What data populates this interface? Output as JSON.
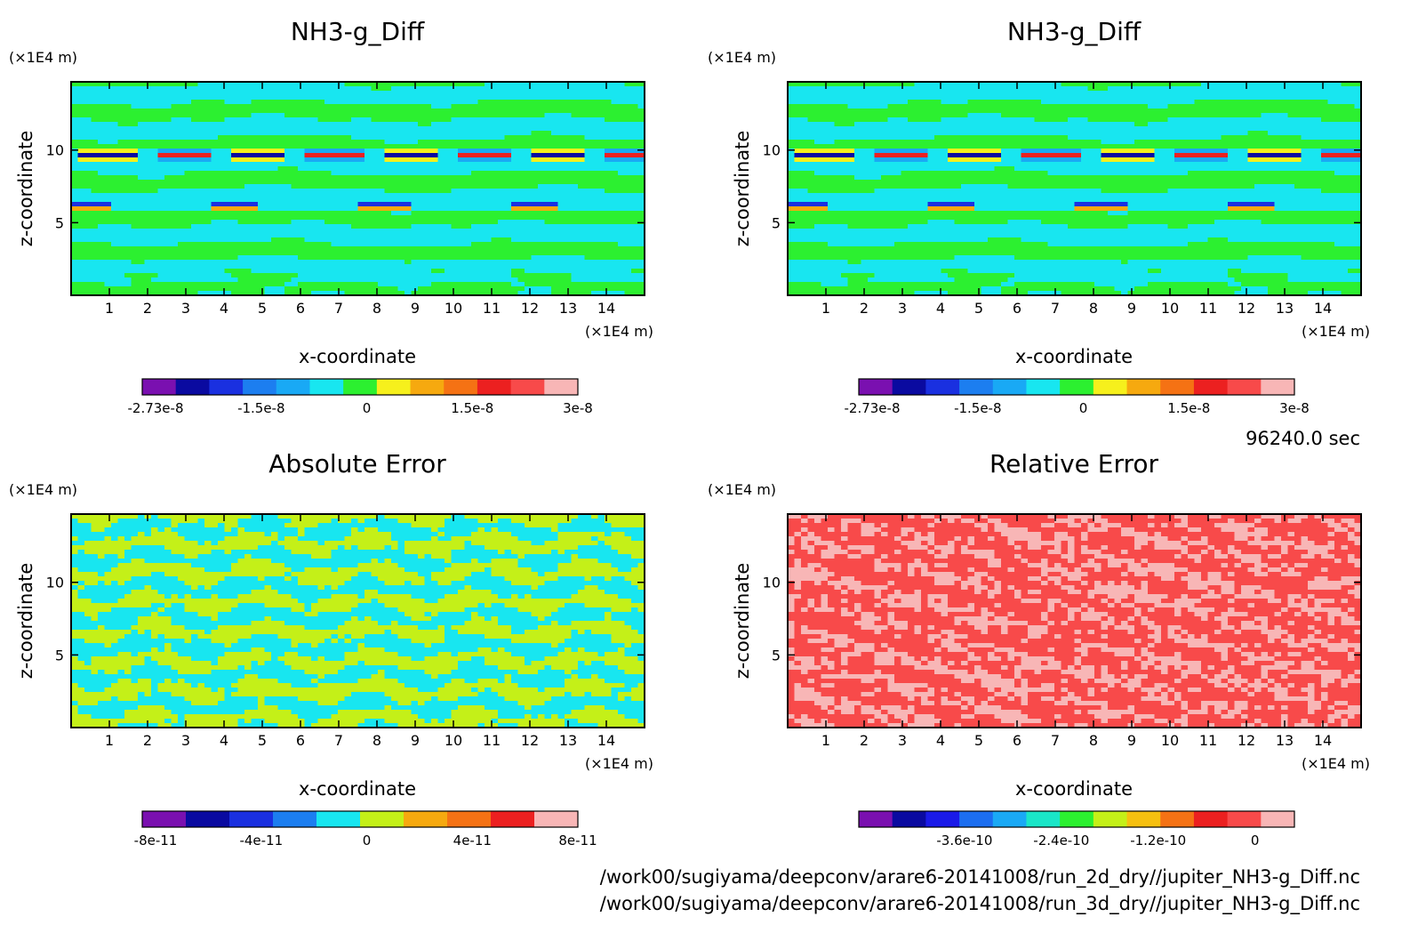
{
  "panels": [
    {
      "title": "NH3-g_Diff",
      "xlabel": "x-coordinate",
      "ylabel": "z-coordinate",
      "x_unit": "(×1E4 m)",
      "y_unit": "(×1E4 m)",
      "x_ticks": [
        "1",
        "2",
        "3",
        "4",
        "5",
        "6",
        "7",
        "8",
        "9",
        "10",
        "11",
        "12",
        "13",
        "14"
      ],
      "y_ticks": [
        "5",
        "10"
      ],
      "colorbar": {
        "colors": [
          "#7a10b0",
          "#0a0aa0",
          "#1a30e0",
          "#1c7ef0",
          "#19a9f5",
          "#18e6f0",
          "#2cf030",
          "#f6f01c",
          "#f6a90f",
          "#f57214",
          "#ec2020",
          "#f84a4a",
          "#f8b6b6"
        ],
        "labels": [
          "-2.73e-8",
          "-1.5e-8",
          "0",
          "1.5e-8",
          "3e-8"
        ]
      }
    },
    {
      "title": "NH3-g_Diff",
      "xlabel": "x-coordinate",
      "ylabel": "z-coordinate",
      "x_unit": "(×1E4 m)",
      "y_unit": "(×1E4 m)",
      "x_ticks": [
        "1",
        "2",
        "3",
        "4",
        "5",
        "6",
        "7",
        "8",
        "9",
        "10",
        "11",
        "12",
        "13",
        "14"
      ],
      "y_ticks": [
        "5",
        "10"
      ],
      "colorbar": {
        "colors": [
          "#7a10b0",
          "#0a0aa0",
          "#1a30e0",
          "#1c7ef0",
          "#19a9f5",
          "#18e6f0",
          "#2cf030",
          "#f6f01c",
          "#f6a90f",
          "#f57214",
          "#ec2020",
          "#f84a4a",
          "#f8b6b6"
        ],
        "labels": [
          "-2.73e-8",
          "-1.5e-8",
          "0",
          "1.5e-8",
          "3e-8"
        ]
      }
    },
    {
      "title": "Absolute Error",
      "xlabel": "x-coordinate",
      "ylabel": "z-coordinate",
      "x_unit": "(×1E4 m)",
      "y_unit": "(×1E4 m)",
      "x_ticks": [
        "1",
        "2",
        "3",
        "4",
        "5",
        "6",
        "7",
        "8",
        "9",
        "10",
        "11",
        "12",
        "13",
        "14"
      ],
      "y_ticks": [
        "5",
        "10"
      ],
      "colorbar": {
        "colors": [
          "#7a10b0",
          "#0a0aa0",
          "#1a30e0",
          "#1c7ef0",
          "#18e6f0",
          "#c4f018",
          "#f6a90f",
          "#f57214",
          "#ec2020",
          "#f8b6b6"
        ],
        "labels": [
          "-8e-11",
          "-4e-11",
          "0",
          "4e-11",
          "8e-11"
        ]
      }
    },
    {
      "title": "Relative Error",
      "xlabel": "x-coordinate",
      "ylabel": "z-coordinate",
      "x_unit": "(×1E4 m)",
      "y_unit": "(×1E4 m)",
      "x_ticks": [
        "1",
        "2",
        "3",
        "4",
        "5",
        "6",
        "7",
        "8",
        "9",
        "10",
        "11",
        "12",
        "13",
        "14"
      ],
      "y_ticks": [
        "5",
        "10"
      ],
      "colorbar": {
        "colors": [
          "#7a10b0",
          "#0a0aa0",
          "#1a1ae8",
          "#1c6ef0",
          "#1aa9f5",
          "#1ae6c8",
          "#2cf030",
          "#c4f018",
          "#f6c010",
          "#f57214",
          "#ec2020",
          "#f84a4a",
          "#f8b6b6"
        ],
        "labels": [
          "-3.6e-10",
          "-2.4e-10",
          "-1.2e-10",
          "0"
        ]
      }
    }
  ],
  "time_label": "96240.0 sec",
  "footer": [
    "/work00/sugiyama/deepconv/arare6-20141008/run_2d_dry//jupiter_NH3-g_Diff.nc",
    "/work00/sugiyama/deepconv/arare6-20141008/run_3d_dry//jupiter_NH3-g_Diff.nc"
  ],
  "chart_data": [
    {
      "type": "heatmap",
      "title": "NH3-g_Diff",
      "xlabel": "x-coordinate",
      "ylabel": "z-coordinate",
      "x_unit": "×1E4 m",
      "y_unit": "×1E4 m",
      "xlim": [
        0,
        15
      ],
      "ylim": [
        0,
        14.7
      ],
      "x_ticks": [
        1,
        2,
        3,
        4,
        5,
        6,
        7,
        8,
        9,
        10,
        11,
        12,
        13,
        14
      ],
      "y_ticks": [
        5,
        10
      ],
      "color_levels": [
        -2.73e-08,
        -1.5e-08,
        0,
        1.5e-08,
        3e-08
      ],
      "dominant": "near zero (green/cyan bands); strong ± extremes along z≈9.5 and z≈6.2"
    },
    {
      "type": "heatmap",
      "title": "NH3-g_Diff",
      "xlabel": "x-coordinate",
      "ylabel": "z-coordinate",
      "x_unit": "×1E4 m",
      "y_unit": "×1E4 m",
      "xlim": [
        0,
        15
      ],
      "ylim": [
        0,
        14.7
      ],
      "x_ticks": [
        1,
        2,
        3,
        4,
        5,
        6,
        7,
        8,
        9,
        10,
        11,
        12,
        13,
        14
      ],
      "y_ticks": [
        5,
        10
      ],
      "color_levels": [
        -2.73e-08,
        -1.5e-08,
        0,
        1.5e-08,
        3e-08
      ]
    },
    {
      "type": "heatmap",
      "title": "Absolute Error",
      "xlabel": "x-coordinate",
      "ylabel": "z-coordinate",
      "x_unit": "×1E4 m",
      "y_unit": "×1E4 m",
      "xlim": [
        0,
        15
      ],
      "ylim": [
        0,
        14.7
      ],
      "x_ticks": [
        1,
        2,
        3,
        4,
        5,
        6,
        7,
        8,
        9,
        10,
        11,
        12,
        13,
        14
      ],
      "y_ticks": [
        5,
        10
      ],
      "color_levels": [
        -8e-11,
        -4e-11,
        0,
        4e-11,
        8e-11
      ],
      "dominant": "alternating cyan and yellow-green (small values around 0)"
    },
    {
      "type": "heatmap",
      "title": "Relative Error",
      "xlabel": "x-coordinate",
      "ylabel": "z-coordinate",
      "x_unit": "×1E4 m",
      "y_unit": "×1E4 m",
      "xlim": [
        0,
        15
      ],
      "ylim": [
        0,
        14.7
      ],
      "x_ticks": [
        1,
        2,
        3,
        4,
        5,
        6,
        7,
        8,
        9,
        10,
        11,
        12,
        13,
        14
      ],
      "y_ticks": [
        5,
        10
      ],
      "color_levels": [
        -3.6e-10,
        -2.4e-10,
        -1.2e-10,
        0
      ],
      "dominant": "red and pink (values near 0)"
    }
  ]
}
